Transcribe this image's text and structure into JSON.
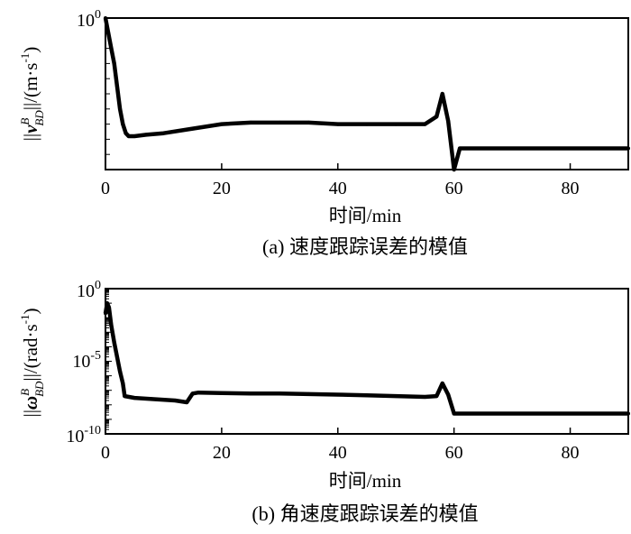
{
  "chart_data": [
    {
      "type": "line",
      "caption": "(a) 速度跟踪误差的模值",
      "xlabel": "时间/min",
      "ylabel": "||v_BD^B||/(m·s⁻¹)",
      "ylabel_parts": {
        "norm_open": "||",
        "symbol": "v",
        "superscript": "B",
        "subscript": "BD",
        "norm_close": "||/(m·s",
        "unit_exp": "-1",
        "close": ")"
      },
      "xlim": [
        0,
        90
      ],
      "x_ticks": [
        "0",
        "20",
        "40",
        "60",
        "80"
      ],
      "y_tick_top": {
        "base": "10",
        "exp": "0"
      },
      "ylim": [
        0.0,
        1.0
      ],
      "series": [
        {
          "x": [
            0,
            0.5,
            1.0,
            1.5,
            2.0,
            2.5,
            3.0,
            3.5,
            4.0,
            5,
            7,
            10,
            15,
            20,
            25,
            30,
            35,
            40,
            45,
            50,
            55,
            57,
            58,
            59,
            60,
            61,
            70,
            80,
            90
          ],
          "y": [
            1.0,
            0.9,
            0.8,
            0.7,
            0.55,
            0.4,
            0.3,
            0.24,
            0.22,
            0.22,
            0.23,
            0.24,
            0.27,
            0.3,
            0.31,
            0.31,
            0.31,
            0.3,
            0.3,
            0.3,
            0.3,
            0.35,
            0.5,
            0.32,
            0.0,
            0.14,
            0.14,
            0.14,
            0.14
          ]
        }
      ]
    },
    {
      "type": "line",
      "caption": "(b) 角速度跟踪误差的模值",
      "xlabel": "时间/min",
      "ylabel": "||ω_BD^B||/(rad·s⁻¹)",
      "ylabel_parts": {
        "norm_open": "||",
        "symbol": "ω",
        "superscript": "B",
        "subscript": "BD",
        "norm_close": "||/(rad·s",
        "unit_exp": "-1",
        "close": ")"
      },
      "xlim": [
        0,
        90
      ],
      "x_ticks": [
        "0",
        "20",
        "40",
        "60",
        "80"
      ],
      "y_ticks": [
        {
          "base": "10",
          "exp": "0",
          "value": 1
        },
        {
          "base": "10",
          "exp": "-5",
          "value": 1e-05
        },
        {
          "base": "10",
          "exp": "-10",
          "value": 1e-10
        }
      ],
      "yscale": "log",
      "ylim": [
        1e-10,
        1
      ],
      "series": [
        {
          "x": [
            0,
            0.3,
            0.6,
            1.0,
            1.5,
            2.0,
            2.5,
            3.0,
            3.3,
            5,
            8,
            12,
            14,
            15,
            16,
            20,
            25,
            30,
            35,
            40,
            45,
            50,
            55,
            57,
            58,
            59,
            60,
            61,
            70,
            80,
            90
          ],
          "y": [
            0.02,
            0.1,
            0.05,
            0.003,
            0.0002,
            2e-05,
            2e-06,
            3e-07,
            4e-08,
            3e-08,
            2.5e-08,
            2e-08,
            1.5e-08,
            6e-08,
            7e-08,
            6.5e-08,
            6e-08,
            6e-08,
            5.5e-08,
            5e-08,
            4.5e-08,
            4e-08,
            3.5e-08,
            4e-08,
            3e-07,
            5e-08,
            2.5e-09,
            2.5e-09,
            2.5e-09,
            2.5e-09,
            2.5e-09
          ]
        }
      ]
    }
  ]
}
